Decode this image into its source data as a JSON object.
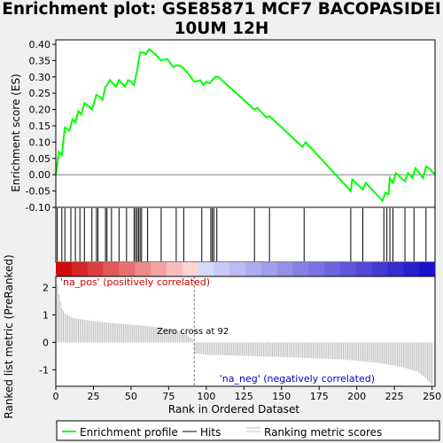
{
  "title": [
    "Enrichment plot: GSE85871 MCF7 BACOPASIDEI",
    "10UM 12H"
  ],
  "legend": {
    "enrichment_profile": "Enrichment profile",
    "hits": "Hits",
    "ranking_metric_scores": "Ranking metric scores"
  },
  "colors": {
    "enrichment_line": "#00ff00",
    "hits": "#000000",
    "ranking_bars": "#c0c0c0",
    "positive": "#cc0000",
    "negative": "#0000cc",
    "zero_cross": "#808080"
  },
  "annotations": {
    "pos_label": "'na_pos' (positively correlated)",
    "neg_label": "'na_neg' (negatively correlated)",
    "zero_cross": "Zero cross at 92"
  },
  "chart_data": [
    {
      "type": "line",
      "name": "enrichment_profile",
      "ylabel": "Enrichment score (ES)",
      "ylim": [
        -0.1,
        0.4
      ],
      "yticks": [
        "-0.10",
        "-0.05",
        "0.00",
        "0.05",
        "0.10",
        "0.15",
        "0.20",
        "0.25",
        "0.30",
        "0.35",
        "0.40"
      ],
      "x": [
        0,
        2,
        4,
        6,
        9,
        11,
        13,
        15,
        17,
        19,
        22,
        24,
        27,
        29,
        31,
        33,
        34,
        36,
        38,
        40,
        42,
        44,
        46,
        48,
        50,
        52,
        54,
        56,
        58,
        60,
        62,
        66,
        70,
        74,
        78,
        80,
        82,
        84,
        88,
        92,
        96,
        98,
        100,
        102,
        104,
        106,
        108,
        132,
        134,
        140,
        142,
        164,
        166,
        196,
        197,
        204,
        206,
        217,
        219,
        221,
        222,
        224,
        226,
        232,
        234,
        237,
        239,
        244,
        246,
        248,
        252
      ],
      "y": [
        0.0,
        0.07,
        0.06,
        0.145,
        0.135,
        0.17,
        0.16,
        0.195,
        0.185,
        0.22,
        0.21,
        0.2,
        0.245,
        0.24,
        0.23,
        0.27,
        0.275,
        0.29,
        0.28,
        0.27,
        0.29,
        0.28,
        0.27,
        0.29,
        0.285,
        0.275,
        0.32,
        0.375,
        0.375,
        0.37,
        0.385,
        0.37,
        0.35,
        0.355,
        0.33,
        0.335,
        0.335,
        0.33,
        0.31,
        0.285,
        0.29,
        0.275,
        0.285,
        0.28,
        0.29,
        0.3,
        0.3,
        0.2,
        0.205,
        0.175,
        0.18,
        0.085,
        0.1,
        -0.05,
        -0.015,
        -0.045,
        -0.025,
        -0.08,
        -0.055,
        -0.06,
        -0.01,
        -0.025,
        0.005,
        -0.02,
        0.005,
        -0.01,
        0.02,
        -0.01,
        0.025,
        0.02,
        0.0
      ]
    },
    {
      "type": "bar",
      "name": "hits",
      "x": [
        1,
        4,
        6,
        10,
        13,
        16,
        19,
        24,
        27,
        28,
        33,
        34,
        37,
        42,
        47,
        52,
        53,
        54,
        55,
        56,
        57,
        61,
        70,
        80,
        85,
        97,
        103,
        104,
        105,
        107,
        132,
        142,
        165,
        196,
        204,
        218,
        220,
        222,
        224,
        232,
        238,
        246
      ]
    },
    {
      "type": "bar",
      "name": "ranking_metric_scores",
      "xlabel": "Rank in Ordered Dataset",
      "ylabel": "Ranked list metric (PreRanked)",
      "xlim": [
        0,
        252
      ],
      "xticks": [
        0,
        25,
        50,
        75,
        100,
        125,
        150,
        175,
        200,
        225,
        250
      ],
      "ylim": [
        -1.6,
        2.4
      ],
      "yticks": [
        -1,
        0,
        1,
        2
      ],
      "points": [
        [
          0,
          2.5
        ],
        [
          2,
          1.75
        ],
        [
          4,
          1.25
        ],
        [
          6,
          1.05
        ],
        [
          10,
          0.92
        ],
        [
          15,
          0.85
        ],
        [
          25,
          0.77
        ],
        [
          40,
          0.69
        ],
        [
          60,
          0.6
        ],
        [
          75,
          0.5
        ],
        [
          85,
          0.38
        ],
        [
          91,
          0.1
        ],
        [
          92,
          -0.4
        ],
        [
          100,
          -0.45
        ],
        [
          130,
          -0.5
        ],
        [
          160,
          -0.55
        ],
        [
          190,
          -0.62
        ],
        [
          215,
          -0.75
        ],
        [
          230,
          -0.9
        ],
        [
          240,
          -1.05
        ],
        [
          246,
          -1.3
        ],
        [
          250,
          -1.55
        ]
      ]
    }
  ]
}
